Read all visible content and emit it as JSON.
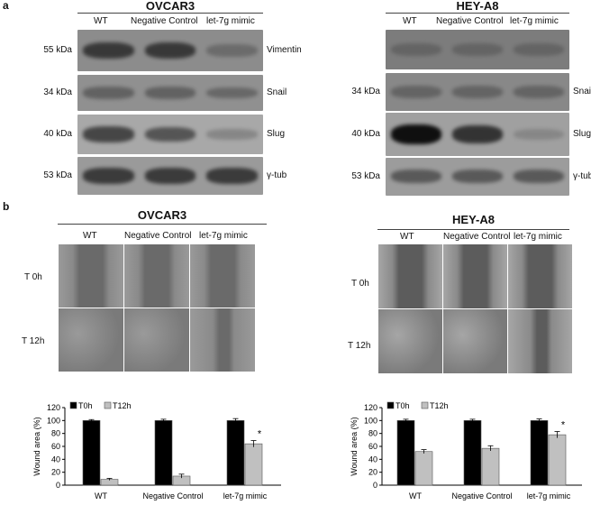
{
  "panel_a": {
    "letter": "a",
    "blots": [
      {
        "title": "OVCAR3",
        "columns": [
          "WT",
          "Negative Control",
          "let-7g mimic"
        ],
        "rows": [
          {
            "kda": "55 kDa",
            "protein": "Vimentin",
            "bands": [
              0.75,
              0.75,
              0.35
            ],
            "bg": "#8c8c8c"
          },
          {
            "kda": "34 kDa",
            "protein": "Snail",
            "bands": [
              0.45,
              0.45,
              0.4
            ],
            "bg": "#909090"
          },
          {
            "kda": "40 kDa",
            "protein": "Slug",
            "bands": [
              0.7,
              0.6,
              0.2
            ],
            "bg": "#a8a8a8"
          },
          {
            "kda": "53 kDa",
            "protein": "γ-tub",
            "bands": [
              0.75,
              0.75,
              0.75
            ],
            "bg": "#9a9a9a"
          }
        ]
      },
      {
        "title": "HEY-A8",
        "columns": [
          "WT",
          "Negative Control",
          "let-7g mimic"
        ],
        "rows": [
          {
            "kda": "",
            "protein": "",
            "bands": [
              0.35,
              0.35,
              0.35
            ],
            "bg": "#7c7c7c"
          },
          {
            "kda": "34 kDa",
            "protein": "Snail",
            "bands": [
              0.4,
              0.4,
              0.4
            ],
            "bg": "#888888"
          },
          {
            "kda": "40 kDa",
            "protein": "Slug",
            "bands": [
              1.0,
              0.8,
              0.15
            ],
            "bg": "#a0a0a0"
          },
          {
            "kda": "53 kDa",
            "protein": "γ-tub",
            "bands": [
              0.55,
              0.55,
              0.55
            ],
            "bg": "#9c9c9c"
          }
        ]
      }
    ]
  },
  "panel_b": {
    "letter": "b",
    "sets": [
      {
        "title": "OVCAR3",
        "columns": [
          "WT",
          "Negative Control",
          "let-7g mimic"
        ],
        "row_labels": [
          "T 0h",
          "T 12h"
        ]
      },
      {
        "title": "HEY-A8",
        "columns": [
          "WT",
          "Negative Control",
          "let-7g mimic"
        ],
        "row_labels": [
          "T 0h",
          "T 12h"
        ]
      }
    ]
  },
  "chart_data": [
    {
      "type": "bar",
      "categories": [
        "WT",
        "Negative Control",
        "let-7g mimic"
      ],
      "series": [
        {
          "name": "T0h",
          "values": [
            100,
            100,
            100
          ],
          "errors": [
            1.5,
            2,
            3
          ],
          "color": "#000000"
        },
        {
          "name": "T12h",
          "values": [
            9,
            14,
            64
          ],
          "errors": [
            1.5,
            3,
            5
          ],
          "color": "#c0c0c0"
        }
      ],
      "ylabel": "Wound area (%)",
      "yticks": [
        0,
        20,
        40,
        60,
        80,
        100,
        120
      ],
      "ylim": [
        0,
        120
      ],
      "annotations": [
        {
          "category": "let-7g mimic",
          "series": "T12h",
          "text": "*"
        }
      ],
      "legend": "top-left"
    },
    {
      "type": "bar",
      "categories": [
        "WT",
        "Negative Control",
        "let-7g mimic"
      ],
      "series": [
        {
          "name": "T0h",
          "values": [
            100,
            100,
            100
          ],
          "errors": [
            2,
            2,
            2.5
          ],
          "color": "#000000"
        },
        {
          "name": "T12h",
          "values": [
            52,
            57,
            78
          ],
          "errors": [
            3,
            4,
            5
          ],
          "color": "#c0c0c0"
        }
      ],
      "ylabel": "Wound area (%)",
      "yticks": [
        0,
        20,
        40,
        60,
        80,
        100,
        120
      ],
      "ylim": [
        0,
        120
      ],
      "annotations": [
        {
          "category": "let-7g mimic",
          "series": "T12h",
          "text": "*"
        }
      ],
      "legend": "top-left"
    }
  ]
}
